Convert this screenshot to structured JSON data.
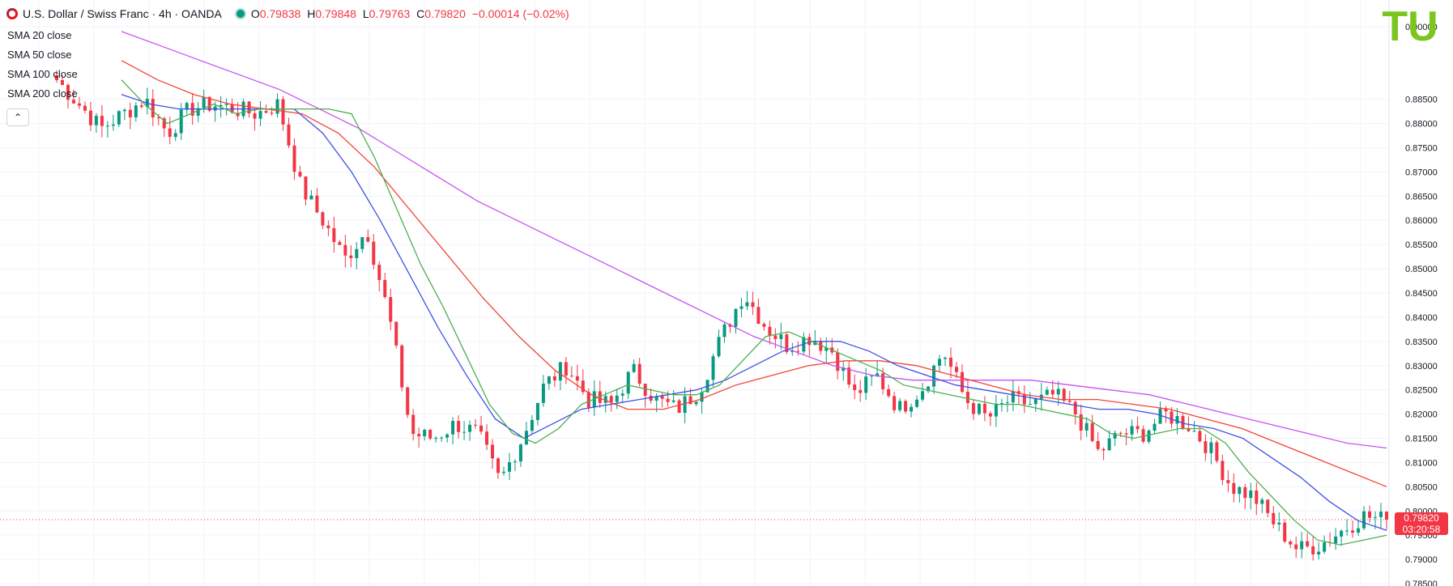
{
  "header": {
    "symbol": "U.S. Dollar / Swiss Franc · 4h · OANDA",
    "open_label": "O",
    "open": "0.79838",
    "high_label": "H",
    "high": "0.79848",
    "low_label": "L",
    "low": "0.79763",
    "close_label": "C",
    "close": "0.79820",
    "change": "−0.00014 (−0.02%)"
  },
  "indicators": [
    "SMA 20 close",
    "SMA 50 close",
    "SMA 100 close",
    "SMA 200 close"
  ],
  "collapse_icon": "chevron-up-icon",
  "logo_text": "TU",
  "price_tag": {
    "price": "0.79820",
    "countdown": "03:20:58"
  },
  "colors": {
    "up": "#089981",
    "down": "#f23645",
    "sma20": "#4caf50",
    "sma50": "#3f51e6",
    "sma100": "#f44336",
    "sma200": "#c651f5",
    "logo": "#7cc51e"
  },
  "chart_data": {
    "type": "candlestick",
    "title": "U.S. Dollar / Swiss Franc · 4h · OANDA",
    "y_ticks": [
      "0.90000",
      "0.88500",
      "0.88000",
      "0.87500",
      "0.87000",
      "0.86500",
      "0.86000",
      "0.85500",
      "0.85000",
      "0.84500",
      "0.84000",
      "0.83500",
      "0.83000",
      "0.82500",
      "0.82000",
      "0.81500",
      "0.81000",
      "0.80500",
      "0.80000",
      "0.79500",
      "0.79000",
      "0.78500"
    ],
    "ylim": [
      0.7845,
      0.9055
    ],
    "grid": true,
    "last_price": 0.7982,
    "close_path": [
      0.889,
      0.884,
      0.879,
      0.882,
      0.885,
      0.878,
      0.883,
      0.884,
      0.883,
      0.882,
      0.884,
      0.867,
      0.86,
      0.852,
      0.858,
      0.84,
      0.816,
      0.815,
      0.818,
      0.816,
      0.806,
      0.815,
      0.826,
      0.83,
      0.823,
      0.822,
      0.829,
      0.823,
      0.821,
      0.825,
      0.836,
      0.845,
      0.838,
      0.834,
      0.836,
      0.833,
      0.824,
      0.828,
      0.821,
      0.825,
      0.833,
      0.823,
      0.819,
      0.823,
      0.822,
      0.824,
      0.82,
      0.812,
      0.816,
      0.816,
      0.82,
      0.818,
      0.813,
      0.805,
      0.803,
      0.797,
      0.792,
      0.793,
      0.796,
      0.799,
      0.798
    ],
    "sma20": [
      0.889,
      0.884,
      0.88,
      0.882,
      0.884,
      0.882,
      0.883,
      0.883,
      0.883,
      0.883,
      0.882,
      0.873,
      0.862,
      0.851,
      0.842,
      0.832,
      0.822,
      0.816,
      0.814,
      0.817,
      0.822,
      0.824,
      0.826,
      0.825,
      0.824,
      0.824,
      0.826,
      0.831,
      0.836,
      0.837,
      0.835,
      0.833,
      0.831,
      0.829,
      0.826,
      0.825,
      0.824,
      0.823,
      0.822,
      0.822,
      0.821,
      0.82,
      0.819,
      0.816,
      0.815,
      0.816,
      0.817,
      0.817,
      0.814,
      0.808,
      0.803,
      0.798,
      0.794,
      0.793,
      0.794,
      0.795
    ],
    "sma50": [
      0.886,
      0.884,
      0.883,
      0.883,
      0.883,
      0.883,
      0.883,
      0.878,
      0.87,
      0.86,
      0.849,
      0.838,
      0.828,
      0.819,
      0.815,
      0.818,
      0.821,
      0.822,
      0.823,
      0.824,
      0.825,
      0.827,
      0.83,
      0.833,
      0.835,
      0.835,
      0.833,
      0.83,
      0.828,
      0.826,
      0.825,
      0.824,
      0.823,
      0.822,
      0.821,
      0.821,
      0.82,
      0.818,
      0.817,
      0.815,
      0.811,
      0.807,
      0.802,
      0.798,
      0.796
    ],
    "sma100": [
      0.893,
      0.889,
      0.886,
      0.884,
      0.883,
      0.882,
      0.878,
      0.871,
      0.862,
      0.853,
      0.844,
      0.836,
      0.829,
      0.824,
      0.821,
      0.821,
      0.823,
      0.826,
      0.828,
      0.83,
      0.831,
      0.831,
      0.83,
      0.828,
      0.826,
      0.824,
      0.823,
      0.823,
      0.822,
      0.821,
      0.819,
      0.817,
      0.814,
      0.811,
      0.808,
      0.805
    ],
    "sma200": [
      0.899,
      0.896,
      0.893,
      0.89,
      0.887,
      0.883,
      0.879,
      0.874,
      0.869,
      0.864,
      0.86,
      0.856,
      0.852,
      0.848,
      0.844,
      0.84,
      0.836,
      0.833,
      0.83,
      0.828,
      0.827,
      0.827,
      0.827,
      0.827,
      0.826,
      0.825,
      0.824,
      0.822,
      0.82,
      0.818,
      0.816,
      0.814,
      0.813
    ]
  }
}
